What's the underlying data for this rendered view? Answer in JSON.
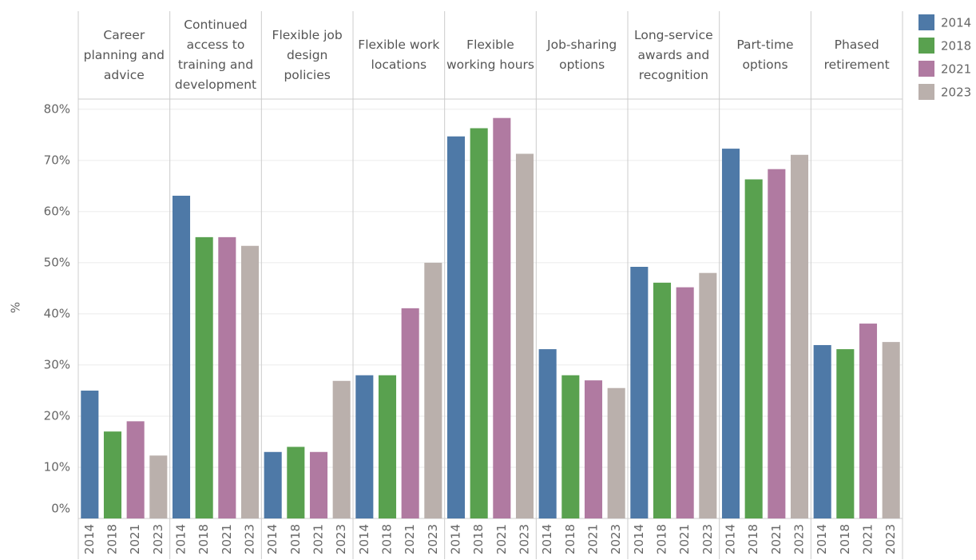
{
  "chart_data": {
    "type": "bar",
    "y_label": "%",
    "categories": [
      "Career planning and advice",
      "Continued access to training and development",
      "Flexible job design policies",
      "Flexible work locations",
      "Flexible working hours",
      "Job-sharing options",
      "Long-service awards and recognition",
      "Part-time options",
      "Phased retirement"
    ],
    "series": [
      {
        "name": "2014",
        "color": "#4e79a7",
        "values": [
          25,
          63.1,
          13,
          28,
          74.7,
          33.1,
          49.2,
          72.3,
          33.9
        ]
      },
      {
        "name": "2018",
        "color": "#59a14f",
        "values": [
          17,
          55,
          14,
          28,
          76.3,
          28,
          46.1,
          66.3,
          33.1
        ]
      },
      {
        "name": "2021",
        "color": "#b07aa1",
        "values": [
          19,
          55,
          13,
          41.1,
          78.3,
          27,
          45.2,
          68.3,
          38.1
        ]
      },
      {
        "name": "2023",
        "color": "#bab0ac",
        "values": [
          12.3,
          53.3,
          26.9,
          50,
          71.3,
          25.5,
          48,
          71.1,
          34.5
        ]
      }
    ],
    "ylim": [
      0,
      82
    ],
    "yticks": [
      {
        "value": 0,
        "label": "0%"
      },
      {
        "value": 10,
        "label": "10%"
      },
      {
        "value": 20,
        "label": "20%"
      },
      {
        "value": 30,
        "label": "30%"
      },
      {
        "value": 40,
        "label": "40%"
      },
      {
        "value": 50,
        "label": "50%"
      },
      {
        "value": 60,
        "label": "60%"
      },
      {
        "value": 70,
        "label": "70%"
      },
      {
        "value": 80,
        "label": "80%"
      }
    ],
    "grid": true,
    "legend": "right"
  }
}
